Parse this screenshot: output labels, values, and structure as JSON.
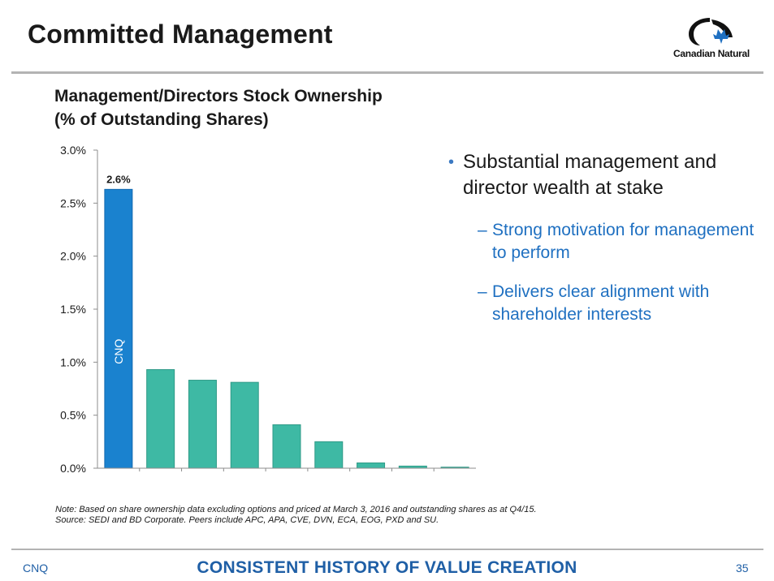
{
  "slide": {
    "title": "Committed Management",
    "logo_text": "Canadian Natural",
    "chart_title_line1": "Management/Directors Stock Ownership",
    "chart_title_line2": "(% of Outstanding Shares)",
    "bullet_main": "Substantial management and director wealth at stake",
    "sub_bullets": [
      "Strong motivation for management to perform",
      "Delivers clear alignment with shareholder interests"
    ],
    "note_line1": "Note: Based on share ownership data excluding options and priced at March 3, 2016 and outstanding shares as at Q4/15.",
    "note_line2": "Source: SEDI and BD Corporate. Peers include APC, APA, CVE, DVN, ECA, EOG, PXD and SU.",
    "footer_left": "CNQ",
    "footer_center": "CONSISTENT HISTORY OF VALUE CREATION",
    "footer_right": "35"
  },
  "colors": {
    "highlight_bar": "#1a82cf",
    "peer_bar": "#3eb9a4",
    "accent_blue": "#1f5fa6"
  },
  "chart_data": {
    "type": "bar",
    "title": "Management/Directors Stock Ownership (% of Outstanding Shares)",
    "categories": [
      "CNQ",
      "",
      "",
      "",
      "",
      "",
      "",
      "",
      ""
    ],
    "values": [
      2.63,
      0.93,
      0.83,
      0.81,
      0.41,
      0.25,
      0.05,
      0.02,
      0.01
    ],
    "highlight_index": 0,
    "highlight_label": "CNQ",
    "data_labels": [
      {
        "index": 0,
        "text": "2.6%"
      }
    ],
    "ylim": [
      0,
      3.0
    ],
    "yticks": [
      "0.0%",
      "0.5%",
      "1.0%",
      "1.5%",
      "2.0%",
      "2.5%",
      "3.0%"
    ],
    "ytick_values": [
      0,
      0.5,
      1.0,
      1.5,
      2.0,
      2.5,
      3.0
    ],
    "grid": false,
    "legend": "none"
  }
}
